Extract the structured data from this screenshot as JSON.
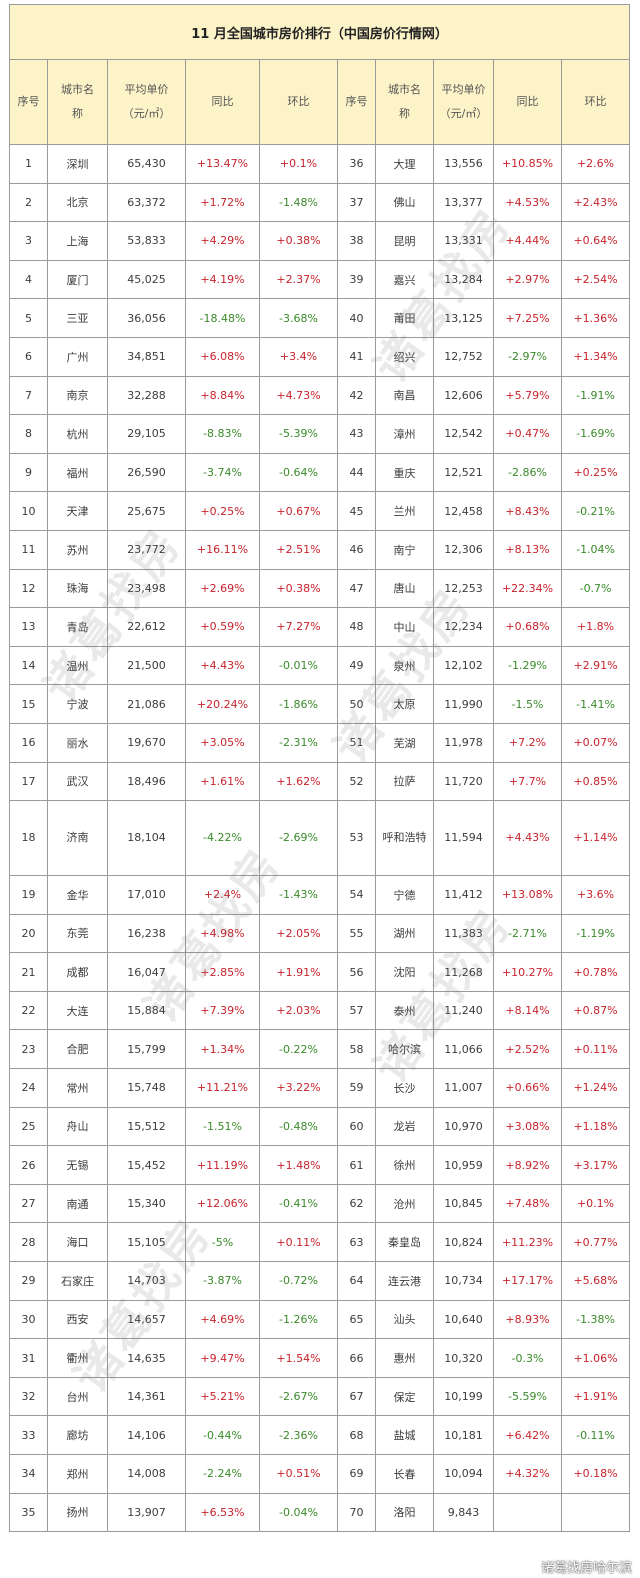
{
  "title": "11 月全国城市房价排行（中国房价行情网）",
  "headers": {
    "rank": "序号",
    "city_line1": "城市名",
    "city_line2": "称",
    "price_line1": "平均单价",
    "price_line2": "（元/㎡）",
    "yoy": "同比",
    "mom": "环比"
  },
  "colors": {
    "header_bg": "#fdf3c8",
    "positive": "#c8232c",
    "negative": "#3a8a2a",
    "border": "#9a9a9a"
  },
  "rows": [
    {
      "l": [
        "1",
        "深圳",
        "65,430",
        "+13.47%",
        "+0.1%"
      ],
      "r": [
        "36",
        "大理",
        "13,556",
        "+10.85%",
        "+2.6%"
      ]
    },
    {
      "l": [
        "2",
        "北京",
        "63,372",
        "+1.72%",
        "-1.48%"
      ],
      "r": [
        "37",
        "佛山",
        "13,377",
        "+4.53%",
        "+2.43%"
      ]
    },
    {
      "l": [
        "3",
        "上海",
        "53,833",
        "+4.29%",
        "+0.38%"
      ],
      "r": [
        "38",
        "昆明",
        "13,331",
        "+4.44%",
        "+0.64%"
      ]
    },
    {
      "l": [
        "4",
        "厦门",
        "45,025",
        "+4.19%",
        "+2.37%"
      ],
      "r": [
        "39",
        "嘉兴",
        "13,284",
        "+2.97%",
        "+2.54%"
      ]
    },
    {
      "l": [
        "5",
        "三亚",
        "36,056",
        "-18.48%",
        "-3.68%"
      ],
      "r": [
        "40",
        "莆田",
        "13,125",
        "+7.25%",
        "+1.36%"
      ]
    },
    {
      "l": [
        "6",
        "广州",
        "34,851",
        "+6.08%",
        "+3.4%"
      ],
      "r": [
        "41",
        "绍兴",
        "12,752",
        "-2.97%",
        "+1.34%"
      ]
    },
    {
      "l": [
        "7",
        "南京",
        "32,288",
        "+8.84%",
        "+4.73%"
      ],
      "r": [
        "42",
        "南昌",
        "12,606",
        "+5.79%",
        "-1.91%"
      ]
    },
    {
      "l": [
        "8",
        "杭州",
        "29,105",
        "-8.83%",
        "-5.39%"
      ],
      "r": [
        "43",
        "漳州",
        "12,542",
        "+0.47%",
        "-1.69%"
      ]
    },
    {
      "l": [
        "9",
        "福州",
        "26,590",
        "-3.74%",
        "-0.64%"
      ],
      "r": [
        "44",
        "重庆",
        "12,521",
        "-2.86%",
        "+0.25%"
      ]
    },
    {
      "l": [
        "10",
        "天津",
        "25,675",
        "+0.25%",
        "+0.67%"
      ],
      "r": [
        "45",
        "兰州",
        "12,458",
        "+8.43%",
        "-0.21%"
      ]
    },
    {
      "l": [
        "11",
        "苏州",
        "23,772",
        "+16.11%",
        "+2.51%"
      ],
      "r": [
        "46",
        "南宁",
        "12,306",
        "+8.13%",
        "-1.04%"
      ]
    },
    {
      "l": [
        "12",
        "珠海",
        "23,498",
        "+2.69%",
        "+0.38%"
      ],
      "r": [
        "47",
        "唐山",
        "12,253",
        "+22.34%",
        "-0.7%"
      ]
    },
    {
      "l": [
        "13",
        "青岛",
        "22,612",
        "+0.59%",
        "+7.27%"
      ],
      "r": [
        "48",
        "中山",
        "12,234",
        "+0.68%",
        "+1.8%"
      ]
    },
    {
      "l": [
        "14",
        "温州",
        "21,500",
        "+4.43%",
        "-0.01%"
      ],
      "r": [
        "49",
        "泉州",
        "12,102",
        "-1.29%",
        "+2.91%"
      ]
    },
    {
      "l": [
        "15",
        "宁波",
        "21,086",
        "+20.24%",
        "-1.86%"
      ],
      "r": [
        "50",
        "太原",
        "11,990",
        "-1.5%",
        "-1.41%"
      ]
    },
    {
      "l": [
        "16",
        "丽水",
        "19,670",
        "+3.05%",
        "-2.31%"
      ],
      "r": [
        "51",
        "芜湖",
        "11,978",
        "+7.2%",
        "+0.07%"
      ]
    },
    {
      "l": [
        "17",
        "武汉",
        "18,496",
        "+1.61%",
        "+1.62%"
      ],
      "r": [
        "52",
        "拉萨",
        "11,720",
        "+7.7%",
        "+0.85%"
      ]
    },
    {
      "l": [
        "18",
        "济南",
        "18,104",
        "-4.22%",
        "-2.69%"
      ],
      "r": [
        "53",
        "呼和浩特",
        "11,594",
        "+4.43%",
        "+1.14%"
      ],
      "tall": true
    },
    {
      "l": [
        "19",
        "金华",
        "17,010",
        "+2.4%",
        "-1.43%"
      ],
      "r": [
        "54",
        "宁德",
        "11,412",
        "+13.08%",
        "+3.6%"
      ]
    },
    {
      "l": [
        "20",
        "东莞",
        "16,238",
        "+4.98%",
        "+2.05%"
      ],
      "r": [
        "55",
        "湖州",
        "11,383",
        "-2.71%",
        "-1.19%"
      ]
    },
    {
      "l": [
        "21",
        "成都",
        "16,047",
        "+2.85%",
        "+1.91%"
      ],
      "r": [
        "56",
        "沈阳",
        "11,268",
        "+10.27%",
        "+0.78%"
      ]
    },
    {
      "l": [
        "22",
        "大连",
        "15,884",
        "+7.39%",
        "+2.03%"
      ],
      "r": [
        "57",
        "泰州",
        "11,240",
        "+8.14%",
        "+0.87%"
      ]
    },
    {
      "l": [
        "23",
        "合肥",
        "15,799",
        "+1.34%",
        "-0.22%"
      ],
      "r": [
        "58",
        "哈尔滨",
        "11,066",
        "+2.52%",
        "+0.11%"
      ]
    },
    {
      "l": [
        "24",
        "常州",
        "15,748",
        "+11.21%",
        "+3.22%"
      ],
      "r": [
        "59",
        "长沙",
        "11,007",
        "+0.66%",
        "+1.24%"
      ]
    },
    {
      "l": [
        "25",
        "舟山",
        "15,512",
        "-1.51%",
        "-0.48%"
      ],
      "r": [
        "60",
        "龙岩",
        "10,970",
        "+3.08%",
        "+1.18%"
      ]
    },
    {
      "l": [
        "26",
        "无锡",
        "15,452",
        "+11.19%",
        "+1.48%"
      ],
      "r": [
        "61",
        "徐州",
        "10,959",
        "+8.92%",
        "+3.17%"
      ]
    },
    {
      "l": [
        "27",
        "南通",
        "15,340",
        "+12.06%",
        "-0.41%"
      ],
      "r": [
        "62",
        "沧州",
        "10,845",
        "+7.48%",
        "+0.1%"
      ]
    },
    {
      "l": [
        "28",
        "海口",
        "15,105",
        "-5%",
        "+0.11%"
      ],
      "r": [
        "63",
        "秦皇岛",
        "10,824",
        "+11.23%",
        "+0.77%"
      ]
    },
    {
      "l": [
        "29",
        "石家庄",
        "14,703",
        "-3.87%",
        "-0.72%"
      ],
      "r": [
        "64",
        "连云港",
        "10,734",
        "+17.17%",
        "+5.68%"
      ]
    },
    {
      "l": [
        "30",
        "西安",
        "14,657",
        "+4.69%",
        "-1.26%"
      ],
      "r": [
        "65",
        "汕头",
        "10,640",
        "+8.93%",
        "-1.38%"
      ]
    },
    {
      "l": [
        "31",
        "衢州",
        "14,635",
        "+9.47%",
        "+1.54%"
      ],
      "r": [
        "66",
        "惠州",
        "10,320",
        "-0.3%",
        "+1.06%"
      ]
    },
    {
      "l": [
        "32",
        "台州",
        "14,361",
        "+5.21%",
        "-2.67%"
      ],
      "r": [
        "67",
        "保定",
        "10,199",
        "-5.59%",
        "+1.91%"
      ]
    },
    {
      "l": [
        "33",
        "廊坊",
        "14,106",
        "-0.44%",
        "-2.36%"
      ],
      "r": [
        "68",
        "盐城",
        "10,181",
        "+6.42%",
        "-0.11%"
      ]
    },
    {
      "l": [
        "34",
        "郑州",
        "14,008",
        "-2.24%",
        "+0.51%"
      ],
      "r": [
        "69",
        "长春",
        "10,094",
        "+4.32%",
        "+0.18%"
      ]
    },
    {
      "l": [
        "35",
        "扬州",
        "13,907",
        "+6.53%",
        "-0.04%"
      ],
      "r": [
        "70",
        "洛阳",
        "9,843",
        "",
        ""
      ]
    }
  ],
  "watermark": "诸葛找房",
  "footer_watermark": "诸葛找房哈尔滨"
}
